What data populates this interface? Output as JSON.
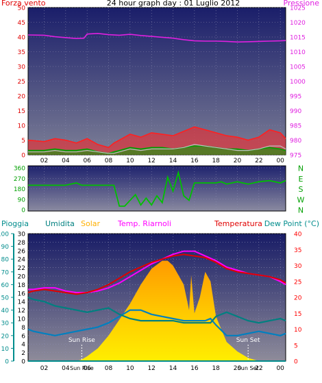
{
  "chart_data": [
    {
      "type": "line",
      "title": "24 hour graph day : 01 Luglio 2012",
      "left_axis_label": "Forza vento",
      "right_axis_label": "Pressione",
      "left_ylim": [
        0,
        50
      ],
      "left_ticks": [
        0,
        5,
        10,
        15,
        20,
        25,
        30,
        35,
        40,
        45,
        50
      ],
      "right_ylim": [
        975,
        1025
      ],
      "right_ticks": [
        975,
        980,
        985,
        990,
        995,
        1000,
        1005,
        1010,
        1015,
        1020,
        1025
      ],
      "x_ticks": [
        "02",
        "04",
        "06",
        "08",
        "10",
        "12",
        "14",
        "16",
        "18",
        "20",
        "22",
        "00"
      ],
      "x_tick_hours": [
        2,
        4,
        6,
        8,
        10,
        12,
        14,
        16,
        18,
        20,
        22,
        24
      ],
      "x_range_hours": [
        0.5,
        24.5
      ],
      "colors": {
        "gust": "#ff2020",
        "wind": "#00a000",
        "wind_avg": "#c0c0c0",
        "pressure": "#e020e0",
        "left_axis": "#e00000",
        "right_axis": "#e020e0"
      },
      "series": [
        {
          "role": "pressure",
          "axis": "right",
          "x": [
            0.5,
            2,
            3,
            4,
            5,
            5.7,
            6,
            7,
            8,
            9,
            10,
            11,
            12,
            13,
            14,
            15,
            16,
            17,
            18,
            19,
            20,
            21,
            22,
            23,
            24,
            24.5
          ],
          "y": [
            1015.7,
            1015.6,
            1015.1,
            1014.8,
            1014.5,
            1014.6,
            1016.0,
            1016.2,
            1015.8,
            1015.6,
            1015.9,
            1015.5,
            1015.2,
            1014.9,
            1014.6,
            1014.1,
            1013.7,
            1013.6,
            1013.6,
            1013.5,
            1013.3,
            1013.4,
            1013.5,
            1013.6,
            1013.7,
            1013.8
          ]
        },
        {
          "role": "gust",
          "axis": "left",
          "x": [
            0.5,
            2,
            3,
            4,
            5,
            6,
            7,
            8,
            8.5,
            9,
            10,
            11,
            12,
            13,
            14,
            15,
            16,
            17,
            18,
            19,
            20,
            21,
            22,
            23,
            24,
            24.5
          ],
          "y": [
            5.0,
            4.5,
            5.5,
            5.0,
            4.0,
            5.5,
            3.5,
            2.5,
            4.0,
            5.0,
            7.0,
            6.0,
            7.5,
            7.0,
            6.5,
            8.0,
            9.5,
            8.5,
            7.5,
            6.5,
            6.0,
            5.0,
            6.0,
            8.5,
            7.5,
            5.5
          ]
        },
        {
          "role": "wind",
          "axis": "left",
          "x": [
            0.5,
            2,
            3,
            4,
            5,
            6,
            7,
            8,
            8.5,
            9,
            10,
            11,
            12,
            13,
            14,
            15,
            16,
            17,
            18,
            19,
            20,
            21,
            22,
            23,
            24,
            24.5
          ],
          "y": [
            1.5,
            1.5,
            2.0,
            1.5,
            1.5,
            2.0,
            1.0,
            0.5,
            1.0,
            1.5,
            2.5,
            2.0,
            2.5,
            2.5,
            2.0,
            2.5,
            3.0,
            3.0,
            2.5,
            2.0,
            2.0,
            1.5,
            2.0,
            2.5,
            2.0,
            1.5
          ]
        },
        {
          "role": "wind_avg",
          "axis": "left",
          "x": [
            0.5,
            2,
            3,
            4,
            5,
            6,
            7,
            8,
            8.5,
            9,
            10,
            11,
            12,
            13,
            14,
            15,
            16,
            17,
            18,
            19,
            20,
            21,
            22,
            23,
            24,
            24.5
          ],
          "y": [
            1.0,
            1.0,
            1.5,
            1.0,
            1.0,
            1.5,
            1.0,
            0.5,
            0.5,
            1.0,
            2.0,
            1.5,
            2.0,
            2.0,
            2.0,
            2.5,
            3.5,
            3.0,
            2.5,
            2.0,
            1.5,
            1.5,
            2.0,
            3.0,
            3.0,
            2.0
          ]
        }
      ]
    },
    {
      "type": "line",
      "title": "",
      "ylim": [
        0,
        360
      ],
      "y_ticks": [
        0,
        90,
        180,
        270,
        360
      ],
      "compass_labels": [
        "N",
        "W",
        "S",
        "E",
        "N"
      ],
      "x_range_hours": [
        0.5,
        24.5
      ],
      "colors": {
        "direction": "#00c000"
      },
      "series": [
        {
          "role": "direction",
          "x": [
            0.5,
            4,
            5,
            5.5,
            8.5,
            9.0,
            9.5,
            10.5,
            11,
            11.5,
            12,
            12.5,
            13,
            13.5,
            14,
            14.5,
            15,
            15.5,
            16,
            17,
            18,
            18.5,
            19,
            20,
            21,
            22,
            23,
            24,
            24.5
          ],
          "y": [
            210,
            210,
            230,
            210,
            210,
            30,
            30,
            130,
            40,
            100,
            40,
            120,
            60,
            280,
            160,
            320,
            120,
            80,
            230,
            230,
            230,
            240,
            220,
            240,
            220,
            240,
            250,
            230,
            250
          ]
        }
      ]
    },
    {
      "type": "line",
      "title": "",
      "labels": {
        "rain": "Pioggia",
        "humidity": "Umidita",
        "solar": "Solar",
        "apparent": "Temp. Riarnoli",
        "temperature": "Temperatura",
        "dewpoint": "Dew Point (°C)"
      },
      "rain_ylim": [
        0,
        100
      ],
      "rain_ticks": [
        0,
        10,
        20,
        30,
        40,
        50,
        60,
        70,
        80,
        90,
        100
      ],
      "humidity_ylim": [
        0,
        30
      ],
      "humidity_ticks": [
        0,
        2,
        4,
        6,
        8,
        10,
        12,
        14,
        16,
        18,
        20,
        22,
        24,
        26,
        28,
        30
      ],
      "temp_ylim": [
        0,
        40
      ],
      "temp_ticks": [
        0,
        5,
        10,
        15,
        20,
        25,
        30,
        35,
        40
      ],
      "x_ticks": [
        "02",
        "04",
        "06",
        "08",
        "10",
        "12",
        "14",
        "16",
        "18",
        "20",
        "22",
        "00"
      ],
      "x_tick_hours": [
        2,
        4,
        6,
        8,
        10,
        12,
        14,
        16,
        18,
        20,
        22,
        24
      ],
      "x_range_hours": [
        0.5,
        24.5
      ],
      "annotations": [
        {
          "text": "Sun Rise",
          "hour": 5.5
        },
        {
          "text": "Sun Set",
          "hour": 21.0
        }
      ],
      "colors": {
        "rain": "#008c8c",
        "humidity": "#008080",
        "solar": "#ffb000",
        "apparent": "#ff00ff",
        "temperature": "#e00000",
        "dewpoint": "#0080c0",
        "temp_axis": "#ff0000",
        "sun": "#ffffff"
      },
      "series": [
        {
          "role": "solar",
          "axis": "temperature",
          "x": [
            0.5,
            5.0,
            5.5,
            6.0,
            7.0,
            8.0,
            9.0,
            10.0,
            11.0,
            12.0,
            13.0,
            13.5,
            14.0,
            15.0,
            15.5,
            15.7,
            16.0,
            16.5,
            17.0,
            17.5,
            18.0,
            19.0,
            20.0,
            21.0,
            22.0,
            24.5
          ],
          "y": [
            0,
            0,
            0.5,
            1.5,
            4.0,
            8.0,
            13.0,
            18.0,
            24.0,
            29.0,
            31.5,
            31.5,
            30.0,
            24.0,
            16.0,
            27.0,
            15.0,
            20.0,
            28.0,
            25.0,
            14.0,
            6.0,
            3.0,
            1.0,
            0,
            0
          ]
        },
        {
          "role": "temperature",
          "axis": "temperature",
          "x": [
            0.5,
            1,
            2,
            3,
            4,
            5,
            6,
            7,
            8,
            9,
            10,
            11,
            12,
            13,
            14,
            15,
            16,
            17,
            18,
            19,
            20,
            21,
            22,
            23,
            24,
            24.5
          ],
          "y": [
            21.5,
            22.0,
            22.5,
            22.0,
            21.5,
            21.0,
            21.5,
            22.5,
            24.0,
            26.0,
            28.0,
            29.5,
            31.0,
            32.0,
            33.0,
            33.5,
            33.0,
            32.5,
            31.0,
            29.0,
            28.0,
            27.5,
            27.0,
            26.5,
            25.5,
            24.5
          ]
        },
        {
          "role": "apparent",
          "axis": "temperature",
          "x": [
            0.5,
            1,
            2,
            3,
            4,
            5,
            6,
            7,
            8,
            9,
            10,
            11,
            12,
            13,
            14,
            15,
            16,
            17,
            18,
            19,
            20,
            21,
            22,
            23,
            24,
            24.5
          ],
          "y": [
            22.5,
            22.5,
            23.0,
            23.0,
            22.0,
            21.5,
            21.5,
            22.0,
            23.0,
            24.5,
            26.5,
            28.5,
            30.5,
            32.0,
            33.5,
            34.5,
            34.5,
            33.0,
            31.5,
            29.5,
            28.5,
            27.5,
            27.0,
            26.5,
            25.0,
            24.0
          ]
        },
        {
          "role": "humidity",
          "axis": "humidity",
          "x": [
            0.5,
            1,
            2,
            3,
            4,
            5,
            6,
            7,
            8,
            9,
            10,
            11,
            12,
            13,
            14,
            15,
            16,
            17,
            17.5,
            18,
            19,
            20,
            21,
            22,
            23,
            24,
            24.5
          ],
          "y": [
            15.0,
            14.5,
            14.0,
            13.0,
            12.5,
            12.0,
            11.5,
            12.0,
            12.5,
            11.0,
            10.0,
            9.5,
            9.5,
            9.5,
            9.5,
            9.0,
            9.0,
            9.0,
            9.0,
            10.5,
            11.5,
            10.5,
            9.5,
            9.0,
            9.5,
            10.0,
            9.5
          ]
        },
        {
          "role": "dewpoint",
          "axis": "humidity",
          "x": [
            0.5,
            1,
            2,
            3,
            4,
            5,
            6,
            7,
            8,
            9,
            10,
            11,
            12,
            13,
            14,
            15,
            16,
            17,
            17.5,
            18,
            19,
            20,
            21,
            22,
            23,
            24,
            24.5
          ],
          "y": [
            7.5,
            7.0,
            6.5,
            6.0,
            6.5,
            7.0,
            7.5,
            8.0,
            9.0,
            10.5,
            12.0,
            12.0,
            11.0,
            10.5,
            10.0,
            9.5,
            9.5,
            9.5,
            10.0,
            8.5,
            6.0,
            6.0,
            6.5,
            7.0,
            6.5,
            6.0,
            6.5
          ]
        },
        {
          "role": "rain",
          "axis": "rain",
          "x": [
            0.5,
            24.5
          ],
          "y": [
            0,
            0
          ]
        }
      ]
    }
  ]
}
